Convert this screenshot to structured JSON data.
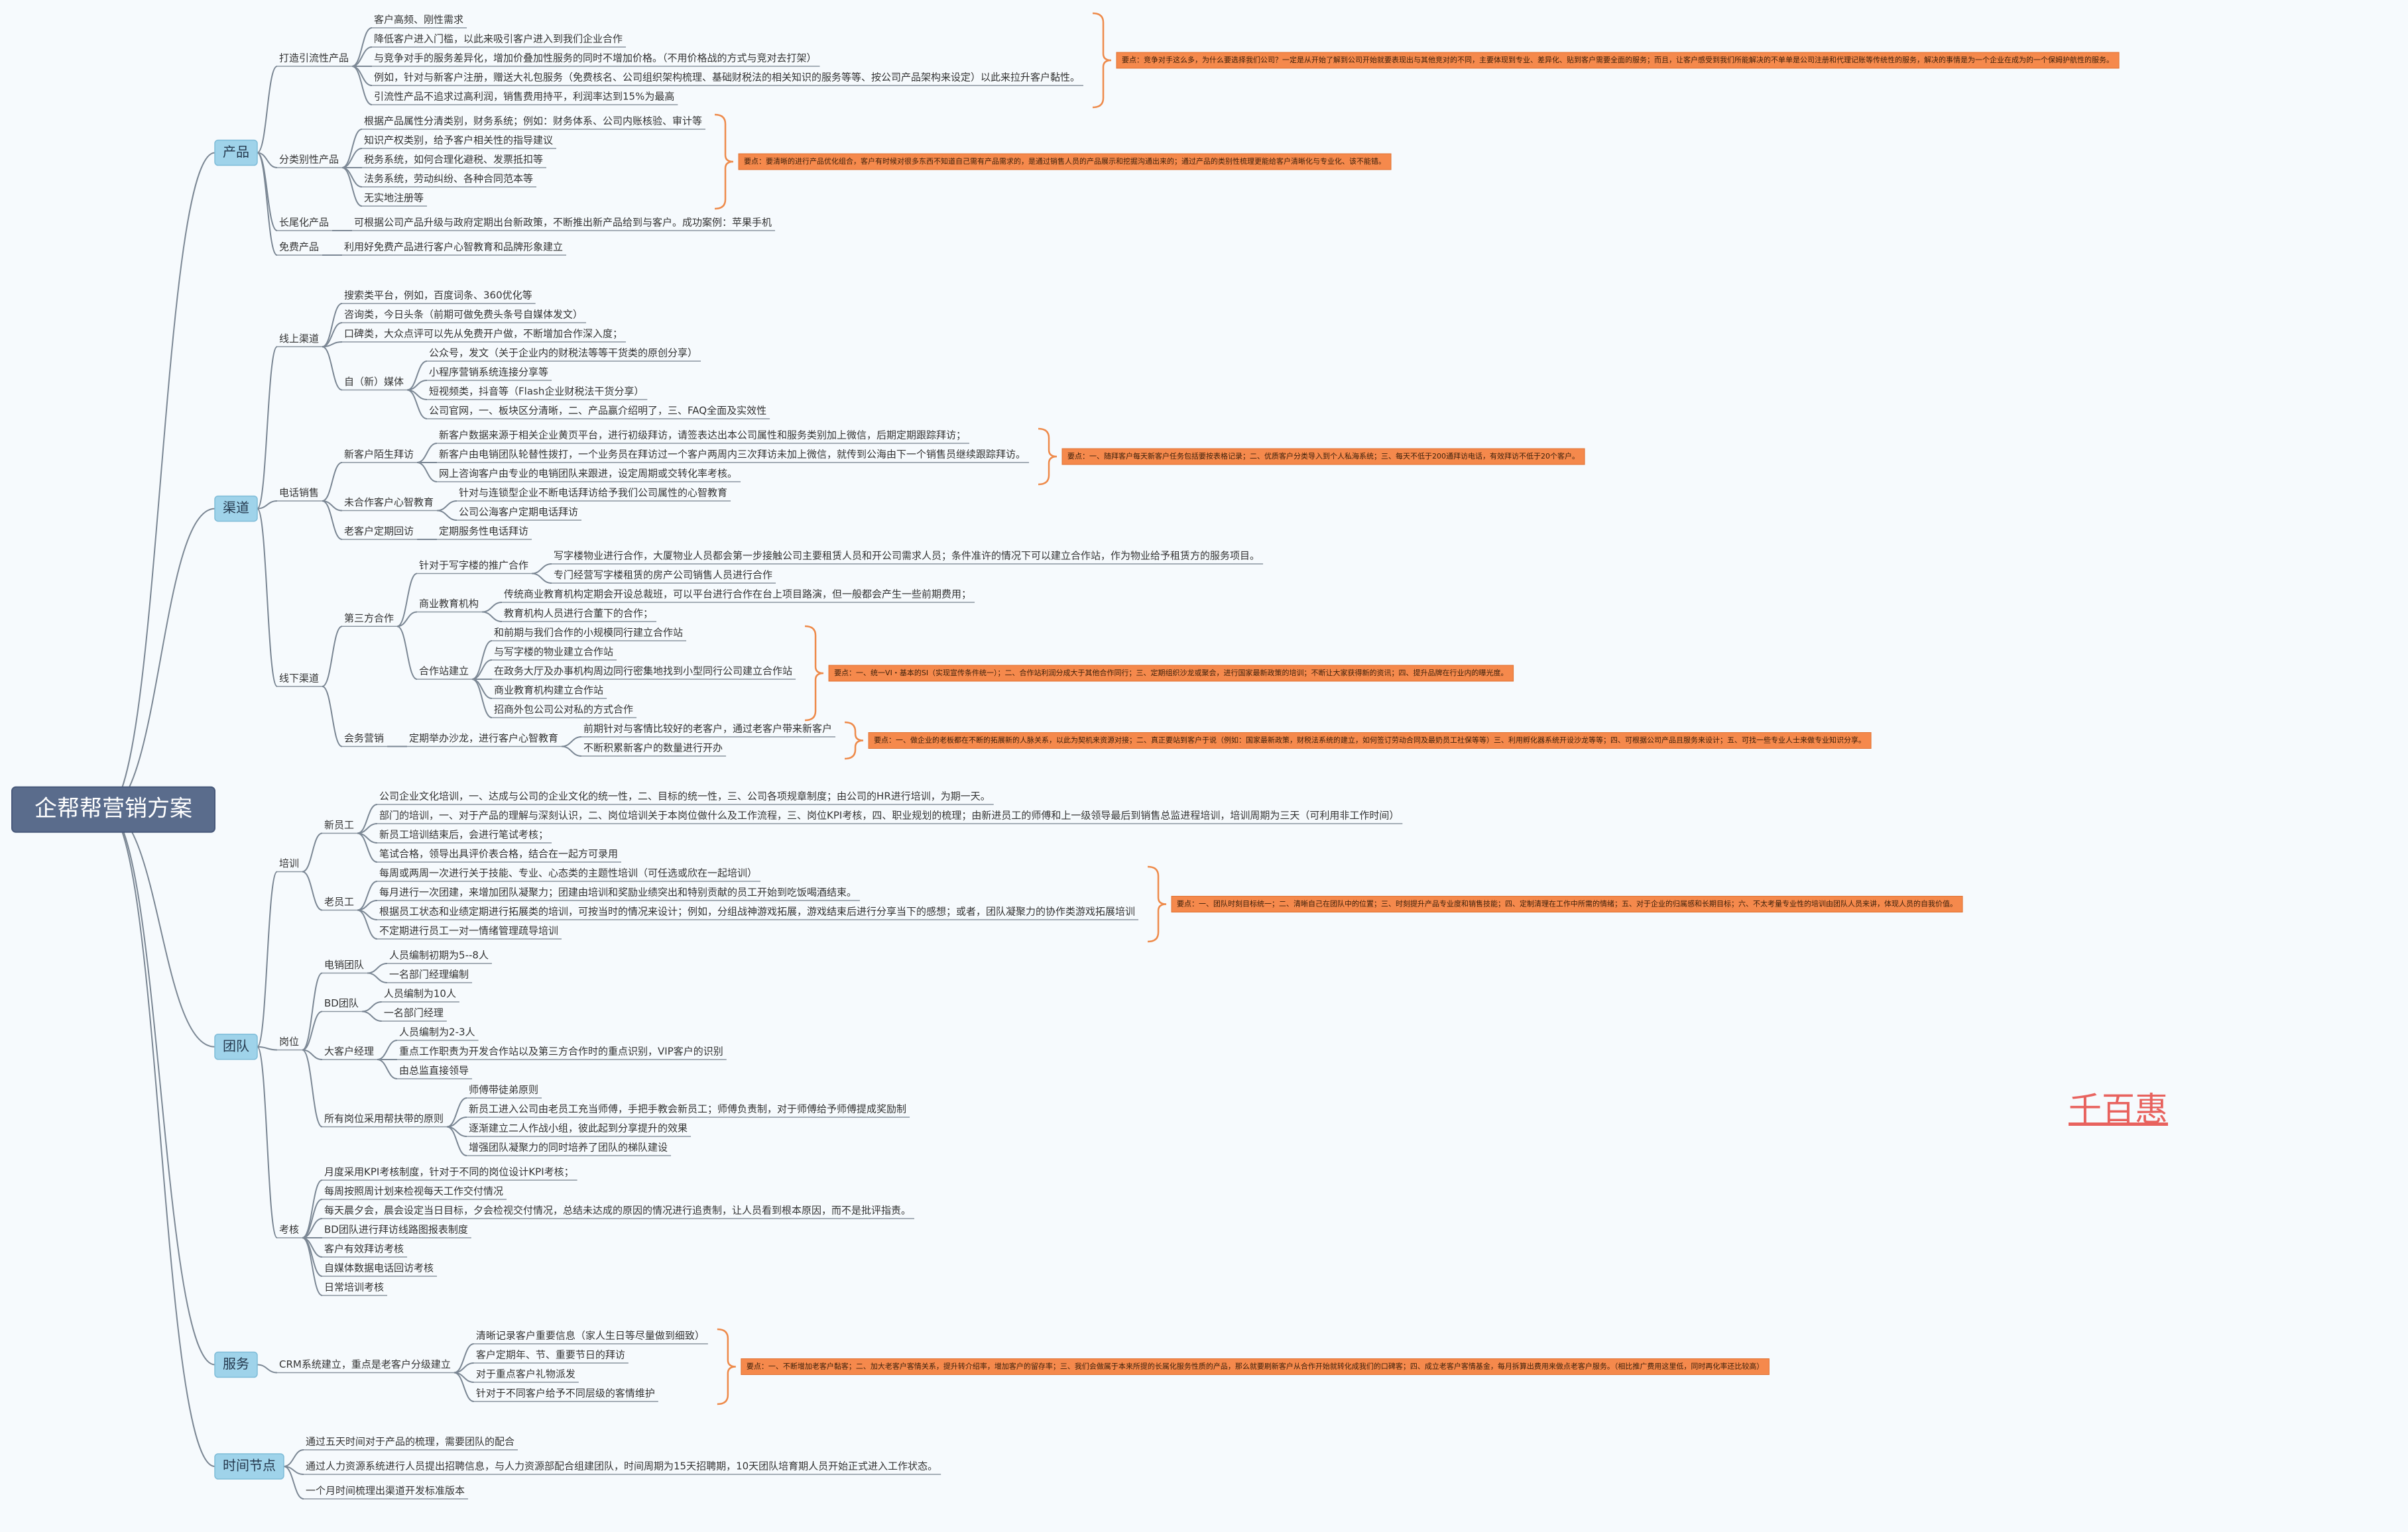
{
  "root": {
    "label": "企帮帮营销方案",
    "children": [
      {
        "label": "产品",
        "children": [
          {
            "label": "打造引流性产品",
            "children": [
              {
                "label": "客户高频、刚性需求"
              },
              {
                "label": "降低客户进入门槛，以此来吸引客户进入到我们企业合作"
              },
              {
                "label": "与竞争对手的服务差异化，增加价叠加性服务的同时不增加价格。（不用价格战的方式与竞对去打架）"
              },
              {
                "label": "例如，针对与新客户注册，赠送大礼包服务（免费核名、公司组织架构梳理、基础财税法的相关知识的服务等等、按公司产品架构来设定）以此来拉升客户黏性。"
              },
              {
                "label": "引流性产品不追求过高利润，销售费用持平，利润率达到15%为最高"
              }
            ],
            "note": "要点：竞争对手这么多，为什么要选择我们公司？一定是从开始了解到公司开始就要表现出与其他竞对的不同，主要体现到专业、差异化、贴到客户需要全面的服务；而且，让客户感受到我们所能解决的不单单是公司注册和代理记账等传统性的服务，解决的事情是为一个企业在成为的一个保姆护航性的服务。"
          },
          {
            "label": "分类别性产品",
            "children": [
              {
                "label": "根据产品属性分清类别，财务系统；例如：财务体系、公司内账核验、审计等"
              },
              {
                "label": "知识产权类别，给予客户相关性的指导建议"
              },
              {
                "label": "税务系统，如何合理化避税、发票抵扣等"
              },
              {
                "label": "法务系统，劳动纠纷、各种合同范本等"
              },
              {
                "label": "无实地注册等"
              }
            ],
            "note": "要点：要清晰的进行产品优化组合，客户有时候对很多东西不知道自己需有产品需求的，是通过销售人员的产品展示和挖掘沟通出来的；通过产品的类别性梳理更能给客户清晰化与专业化、该不能错。"
          },
          {
            "label": "长尾化产品",
            "children": [
              {
                "label": "可根据公司产品升级与政府定期出台新政策，不断推出新产品给到与客户。成功案例：苹果手机"
              }
            ]
          },
          {
            "label": "免费产品",
            "children": [
              {
                "label": "利用好免费产品进行客户心智教育和品牌形象建立"
              }
            ]
          }
        ]
      },
      {
        "label": "渠道",
        "children": [
          {
            "label": "线上渠道",
            "children": [
              {
                "label": "搜索类平台，例如，百度词条、360优化等"
              },
              {
                "label": "咨询类，今日头条（前期可做免费头条号自媒体发文）"
              },
              {
                "label": "口碑类，大众点评可以先从免费开户做，不断增加合作深入度；"
              },
              {
                "label": "自（新）媒体",
                "children": [
                  {
                    "label": "公众号，发文（关于企业内的财税法等等干货类的原创分享）"
                  },
                  {
                    "label": "小程序营销系统连接分享等"
                  },
                  {
                    "label": "短视频类，抖音等（Flash企业财税法干货分享）"
                  },
                  {
                    "label": "公司官网，一、板块区分清晰，二、产品赢介绍明了，三、FAQ全面及实效性"
                  }
                ]
              }
            ]
          },
          {
            "label": "电话销售",
            "children": [
              {
                "label": "新客户陌生拜访",
                "children": [
                  {
                    "label": "新客户数据来源于相关企业黄页平台，进行初级拜访，请签表达出本公司属性和服务类别加上微信，后期定期跟踪拜访；"
                  },
                  {
                    "label": "新客户由电销团队轮替性拨打，一个业务员在拜访过一个客户两周内三次拜访未加上微信，就传到公海由下一个销售员继续跟踪拜访。"
                  },
                  {
                    "label": "网上咨询客户由专业的电销团队来跟进，设定周期或交转化率考核。"
                  }
                ],
                "note": "要点：一、随拜客户每天新客户任务包括要按表格记录；二、优质客户分类导入到个人私海系统；三、每天不低于200通拜访电话，有效拜访不低于20个客户。"
              },
              {
                "label": "未合作客户心智教育",
                "children": [
                  {
                    "label": "针对与连锁型企业不断电话拜访给予我们公司属性的心智教育"
                  },
                  {
                    "label": "公司公海客户定期电话拜访"
                  }
                ]
              },
              {
                "label": "老客户定期回访",
                "children": [
                  {
                    "label": "定期服务性电话拜访"
                  }
                ]
              }
            ]
          },
          {
            "label": "线下渠道",
            "children": [
              {
                "label": "第三方合作",
                "children": [
                  {
                    "label": "针对于写字楼的推广合作",
                    "children": [
                      {
                        "label": "写字楼物业进行合作，大厦物业人员都会第一步接触公司主要租赁人员和开公司需求人员；条件准许的情况下可以建立合作站，作为物业给予租赁方的服务项目。"
                      },
                      {
                        "label": "专门经营写字楼租赁的房产公司销售人员进行合作"
                      }
                    ]
                  },
                  {
                    "label": "商业教育机构",
                    "children": [
                      {
                        "label": "传统商业教育机构定期会开设总裁班，可以平台进行合作在台上项目路演，但一般都会产生一些前期费用；"
                      },
                      {
                        "label": "教育机构人员进行合董下的合作；"
                      }
                    ]
                  },
                  {
                    "label": "合作站建立",
                    "children": [
                      {
                        "label": "和前期与我们合作的小规模同行建立合作站"
                      },
                      {
                        "label": "与写字楼的物业建立合作站"
                      },
                      {
                        "label": "在政务大厅及办事机构周边同行密集地找到小型同行公司建立合作站"
                      },
                      {
                        "label": "商业教育机构建立合作站"
                      },
                      {
                        "label": "招商外包公司公对私的方式合作"
                      }
                    ],
                    "note": "要点：一、统一VI・基本的SI（实现宣传条件统一）；二、合作站利润分成大于其他合作同行；三、定期组织沙龙或聚会，进行国家最新政策的培训；不断让大家获得新的资讯；四、提升品牌在行业内的曝光度。"
                  }
                ]
              },
              {
                "label": "会务营销",
                "children": [
                  {
                    "label": "定期举办沙龙，进行客户心智教育",
                    "children": [
                      {
                        "label": "前期针对与客情比较好的老客户，通过老客户带来新客户"
                      },
                      {
                        "label": "不断积累新客户的数量进行开办"
                      }
                    ],
                    "note": "要点：一、做企业的老板都在不断的拓展新的人脉关系，以此为契机来资源对接；二、真正要站到客户于说（例如：国家最新政策，财税法系统的建立，如何签订劳动合同及最奶员工社保等等）三、利用孵化器系统开设沙龙等等；四、可根据公司产品且服务来设计；五、可找一些专业人士来做专业知识分享。"
                  }
                ]
              }
            ]
          }
        ]
      },
      {
        "label": "团队",
        "children": [
          {
            "label": "培训",
            "children": [
              {
                "label": "新员工",
                "children": [
                  {
                    "label": "公司企业文化培训，一、达成与公司的企业文化的统一性，二、目标的统一性，三、公司各项规章制度；由公司的HR进行培训，为期一天。"
                  },
                  {
                    "label": "部门的培训，一、对于产品的理解与深刻认识，二、岗位培训关于本岗位做什么及工作流程，三、岗位KPI考核，四、职业规划的梳理；由新进员工的师傅和上一级领导最后到销售总监进程培训，培训周期为三天（可利用非工作时间）"
                  },
                  {
                    "label": "新员工培训结束后，会进行笔试考核；"
                  },
                  {
                    "label": "笔试合格，领导出具评价表合格，结合在一起方可录用"
                  }
                ]
              },
              {
                "label": "老员工",
                "children": [
                  {
                    "label": "每周或两周一次进行关于技能、专业、心态类的主题性培训（可任选或欣在一起培训）"
                  },
                  {
                    "label": "每月进行一次团建，来增加团队凝聚力；团建由培训和奖励业绩突出和特别贡献的员工开始到吃饭喝酒结束。"
                  },
                  {
                    "label": "根据员工状态和业绩定期进行拓展类的培训，可按当时的情况来设计；例如，分组战神游戏拓展，游戏结束后进行分享当下的感想；或者，团队凝聚力的协作类游戏拓展培训"
                  },
                  {
                    "label": "不定期进行员工一对一情绪管理疏导培训"
                  }
                ],
                "note": "要点：一、团队时刻目标统一；二、清晰自己在团队中的位置；三、时刻提升产品专业度和销售技能；四、定制清理在工作中所需的情绪；五、对于企业的归属感和长期目标；六、不太考量专业性的培训由团队人员来讲，体现人员的自我价值。"
              }
            ]
          },
          {
            "label": "岗位",
            "children": [
              {
                "label": "电销团队",
                "children": [
                  {
                    "label": "人员编制初期为5--8人"
                  },
                  {
                    "label": "一名部门经理编制"
                  }
                ]
              },
              {
                "label": "BD团队",
                "children": [
                  {
                    "label": "人员编制为10人"
                  },
                  {
                    "label": "一名部门经理"
                  }
                ]
              },
              {
                "label": "大客户经理",
                "children": [
                  {
                    "label": "人员编制为2-3人"
                  },
                  {
                    "label": "重点工作职责为开发合作站以及第三方合作时的重点识别，VIP客户的识别"
                  },
                  {
                    "label": "由总监直接领导"
                  }
                ]
              },
              {
                "label": "所有岗位采用帮扶带的原则",
                "children": [
                  {
                    "label": "师傅带徒弟原则"
                  },
                  {
                    "label": "新员工进入公司由老员工充当师傅，手把手教会新员工；师傅负责制，对于师傅给予师傅提成奖励制"
                  },
                  {
                    "label": "逐渐建立二人作战小组，彼此起到分享提升的效果"
                  },
                  {
                    "label": "增强团队凝聚力的同时培养了团队的梯队建设"
                  }
                ]
              }
            ]
          },
          {
            "label": "考核",
            "children": [
              {
                "label": "月度采用KPI考核制度，针对于不同的岗位设计KPI考核；"
              },
              {
                "label": "每周按照周计划来检视每天工作交付情况"
              },
              {
                "label": "每天晨夕会，晨会设定当日目标，夕会检视交付情况，总结未达成的原因的情况进行追责制，让人员看到根本原因，而不是批评指责。"
              },
              {
                "label": "BD团队进行拜访线路图报表制度"
              },
              {
                "label": "客户有效拜访考核"
              },
              {
                "label": "自媒体数据电话回访考核"
              },
              {
                "label": "日常培训考核"
              }
            ]
          }
        ]
      },
      {
        "label": "服务",
        "children": [
          {
            "label": "CRM系统建立，重点是老客户分级建立",
            "children": [
              {
                "label": "清晰记录客户重要信息（家人生日等尽量做到细致）"
              },
              {
                "label": "客户定期年、节、重要节日的拜访"
              },
              {
                "label": "对于重点客户礼物派发"
              },
              {
                "label": "针对于不同客户给予不同层级的客情维护"
              }
            ],
            "note": "要点：一、不断增加老客户黏客；二、加大老客户客情关系，提升转介绍率，增加客户的留存率；三、我们会做属于本来所提的长属化服务性质的产品，那么就要刷新客户从合作开始就转化成我们的口碑客；四、成立老客户客情基金，每月拆算出费用来做点老客户服务。（相比推广费用这里低，同时再化率还比较高）"
          }
        ]
      },
      {
        "label": "时间节点",
        "children": [
          {
            "label": "通过五天时间对于产品的梳理，需要团队的配合"
          },
          {
            "label": "通过人力资源系统进行人员提出招聘信息，与人力资源部配合组建团队，时间周期为15天招聘期，10天团队培育期人员开始正式进入工作状态。"
          },
          {
            "label": "一个月时间梳理出渠道开发标准版本"
          }
        ]
      }
    ]
  },
  "watermark": "千百惠"
}
